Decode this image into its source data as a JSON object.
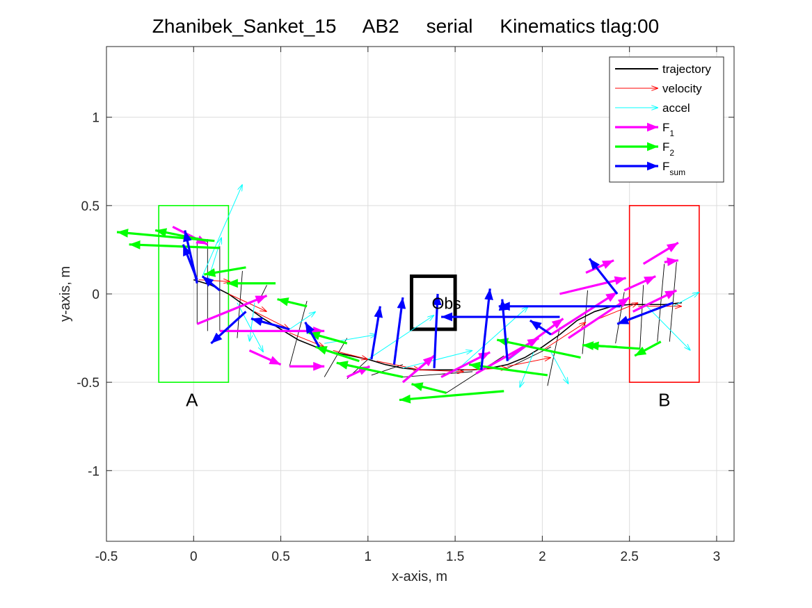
{
  "chart_data": {
    "type": "line",
    "title": "Zhanibek_Sanket_15     AB2     serial     Kinematics tlag:00",
    "xlabel": "x-axis, m",
    "ylabel": "y-axis, m",
    "xlim": [
      -0.5,
      3.1
    ],
    "ylim": [
      -1.4,
      1.4
    ],
    "grid": true,
    "xticks": [
      -0.5,
      0,
      0.5,
      1,
      1.5,
      2,
      2.5,
      3
    ],
    "xtick_labels": [
      "-0.5",
      "0",
      "0.5",
      "1",
      "1.5",
      "2",
      "2.5",
      "3"
    ],
    "yticks": [
      1,
      0.5,
      0,
      -0.5,
      -1
    ],
    "ytick_labels": [
      "1",
      "0.5",
      "0",
      "-0.5",
      "-1"
    ],
    "legend": {
      "placement": "top-right",
      "entries": [
        {
          "label": "trajectory",
          "color": "#000000",
          "style": "line"
        },
        {
          "label": "velocity",
          "color": "#ff0000",
          "style": "thin-arrow"
        },
        {
          "label": "accel",
          "color": "#00ffff",
          "style": "thin-arrow"
        },
        {
          "label": "F",
          "sub": "1",
          "color": "#ff00ff",
          "style": "thick-arrow"
        },
        {
          "label": "F",
          "sub": "2",
          "color": "#00ff00",
          "style": "thick-arrow"
        },
        {
          "label": "F",
          "sub": "sum",
          "color": "#0000ff",
          "style": "thick-arrow"
        }
      ]
    },
    "regions": [
      {
        "label": "A",
        "color": "#00ff00",
        "x": [
          -0.2,
          0.2
        ],
        "y": [
          -0.5,
          0.5
        ],
        "label_pos": [
          -0.01,
          -0.6
        ]
      },
      {
        "label": "B",
        "color": "#ff0000",
        "x": [
          2.5,
          2.9
        ],
        "y": [
          -0.5,
          0.5
        ],
        "label_pos": [
          2.7,
          -0.6
        ]
      },
      {
        "label": "Obs",
        "color": "#000000",
        "x": [
          1.25,
          1.5
        ],
        "y": [
          -0.2,
          0.1
        ],
        "label_pos": [
          1.45,
          -0.05
        ]
      }
    ],
    "trajectory": {
      "x": [
        0.0,
        0.1,
        0.2,
        0.3,
        0.4,
        0.5,
        0.6,
        0.7,
        0.8,
        0.9,
        1.0,
        1.1,
        1.2,
        1.3,
        1.4,
        1.5,
        1.6,
        1.7,
        1.8,
        1.9,
        2.0,
        2.1,
        2.2,
        2.3,
        2.4,
        2.5,
        2.6,
        2.7,
        2.8
      ],
      "y": [
        0.08,
        0.05,
        0.0,
        -0.07,
        -0.14,
        -0.2,
        -0.26,
        -0.3,
        -0.33,
        -0.35,
        -0.37,
        -0.4,
        -0.42,
        -0.43,
        -0.43,
        -0.43,
        -0.43,
        -0.42,
        -0.4,
        -0.36,
        -0.3,
        -0.23,
        -0.15,
        -0.1,
        -0.07,
        -0.06,
        -0.06,
        -0.06,
        -0.05
      ]
    },
    "pose_segments": [
      {
        "x": [
          0.02,
          0.02
        ],
        "y": [
          -0.17,
          0.32
        ]
      },
      {
        "x": [
          0.08,
          0.08
        ],
        "y": [
          -0.21,
          0.31
        ]
      },
      {
        "x": [
          0.15,
          0.15
        ],
        "y": [
          -0.21,
          0.27
        ]
      },
      {
        "x": [
          0.25,
          0.28
        ],
        "y": [
          -0.25,
          0.13
        ]
      },
      {
        "x": [
          0.38,
          0.42
        ],
        "y": [
          -0.03,
          0.05
        ]
      },
      {
        "x": [
          0.55,
          0.65
        ],
        "y": [
          -0.41,
          -0.04
        ]
      },
      {
        "x": [
          0.75,
          0.88
        ],
        "y": [
          -0.47,
          -0.25
        ]
      },
      {
        "x": [
          0.88,
          1.0
        ],
        "y": [
          -0.48,
          -0.37
        ]
      },
      {
        "x": [
          1.02,
          1.2
        ],
        "y": [
          -0.46,
          -0.4
        ]
      },
      {
        "x": [
          1.2,
          1.6
        ],
        "y": [
          -0.47,
          -0.44
        ]
      },
      {
        "x": [
          1.45,
          1.78
        ],
        "y": [
          -0.56,
          -0.35
        ]
      },
      {
        "x": [
          1.78,
          2.05
        ],
        "y": [
          -0.43,
          -0.3
        ]
      },
      {
        "x": [
          2.03,
          2.1
        ],
        "y": [
          -0.52,
          -0.19
        ]
      },
      {
        "x": [
          2.23,
          2.26
        ],
        "y": [
          -0.34,
          0.02
        ]
      },
      {
        "x": [
          2.42,
          2.47
        ],
        "y": [
          -0.28,
          0.01
        ]
      },
      {
        "x": [
          2.56,
          2.58
        ],
        "y": [
          -0.31,
          0.05
        ]
      },
      {
        "x": [
          2.66,
          2.7
        ],
        "y": [
          -0.27,
          0.17
        ]
      },
      {
        "x": [
          2.73,
          2.77
        ],
        "y": [
          -0.27,
          0.18
        ]
      }
    ],
    "series": [
      {
        "name": "velocity",
        "color": "#ff0000",
        "vectors": [
          {
            "x": 0.03,
            "y": 0.08,
            "dx": 0.18,
            "dy": -0.01
          },
          {
            "x": 0.2,
            "y": 0.0,
            "dx": 0.22,
            "dy": -0.1
          },
          {
            "x": 0.35,
            "y": -0.1,
            "dx": 0.2,
            "dy": -0.1
          },
          {
            "x": 0.55,
            "y": -0.22,
            "dx": 0.2,
            "dy": -0.08
          },
          {
            "x": 0.8,
            "y": -0.32,
            "dx": 0.2,
            "dy": -0.05
          },
          {
            "x": 1.05,
            "y": -0.38,
            "dx": 0.25,
            "dy": -0.05
          },
          {
            "x": 1.3,
            "y": -0.43,
            "dx": 0.25,
            "dy": -0.01
          },
          {
            "x": 1.55,
            "y": -0.43,
            "dx": 0.25,
            "dy": 0.01
          },
          {
            "x": 1.8,
            "y": -0.41,
            "dx": 0.25,
            "dy": 0.05
          },
          {
            "x": 2.0,
            "y": -0.32,
            "dx": 0.25,
            "dy": 0.16
          },
          {
            "x": 2.3,
            "y": -0.15,
            "dx": 0.25,
            "dy": 0.1
          },
          {
            "x": 2.55,
            "y": -0.07,
            "dx": 0.25,
            "dy": 0.0
          }
        ]
      },
      {
        "name": "accel",
        "color": "#00ffff",
        "vectors": [
          {
            "x": 0.05,
            "y": 0.1,
            "dx": 0.23,
            "dy": 0.52
          },
          {
            "x": 0.08,
            "y": 0.07,
            "dx": 0.08,
            "dy": 0.25
          },
          {
            "x": 0.25,
            "y": -0.05,
            "dx": 0.15,
            "dy": -0.28
          },
          {
            "x": 0.35,
            "y": -0.05,
            "dx": -0.03,
            "dy": -0.22
          },
          {
            "x": 0.55,
            "y": -0.2,
            "dx": 0.15,
            "dy": 0.1
          },
          {
            "x": 0.75,
            "y": -0.28,
            "dx": 0.3,
            "dy": 0.05
          },
          {
            "x": 1.0,
            "y": -0.37,
            "dx": 0.38,
            "dy": 0.25
          },
          {
            "x": 1.2,
            "y": -0.42,
            "dx": 0.4,
            "dy": 0.1
          },
          {
            "x": 1.5,
            "y": -0.44,
            "dx": 0.42,
            "dy": 0.37
          },
          {
            "x": 1.8,
            "y": -0.38,
            "dx": 0.3,
            "dy": 0.23
          },
          {
            "x": 1.95,
            "y": -0.33,
            "dx": -0.08,
            "dy": -0.2
          },
          {
            "x": 2.05,
            "y": -0.33,
            "dx": 0.1,
            "dy": -0.18
          },
          {
            "x": 2.6,
            "y": -0.07,
            "dx": 0.25,
            "dy": -0.25
          },
          {
            "x": 2.75,
            "y": -0.07,
            "dx": 0.15,
            "dy": 0.08
          }
        ]
      },
      {
        "name": "F1",
        "color": "#ff00ff",
        "vectors": [
          {
            "x": 0.02,
            "y": -0.17,
            "dx": 0.4,
            "dy": 0.16
          },
          {
            "x": 0.15,
            "y": -0.21,
            "dx": 0.6,
            "dy": 0.0
          },
          {
            "x": 0.32,
            "y": -0.32,
            "dx": 0.18,
            "dy": -0.08
          },
          {
            "x": 0.55,
            "y": -0.41,
            "dx": 0.2,
            "dy": 0.0
          },
          {
            "x": 0.88,
            "y": -0.47,
            "dx": 0.13,
            "dy": 0.06
          },
          {
            "x": 1.2,
            "y": -0.5,
            "dx": 0.18,
            "dy": 0.15
          },
          {
            "x": 1.42,
            "y": -0.47,
            "dx": 0.28,
            "dy": 0.14
          },
          {
            "x": 1.62,
            "y": -0.45,
            "dx": 0.36,
            "dy": 0.2
          },
          {
            "x": 1.8,
            "y": -0.37,
            "dx": 0.32,
            "dy": 0.23
          },
          {
            "x": 2.05,
            "y": -0.23,
            "dx": 0.38,
            "dy": 0.24
          },
          {
            "x": 2.1,
            "y": 0.0,
            "dx": 0.38,
            "dy": 0.09
          },
          {
            "x": 2.25,
            "y": 0.12,
            "dx": 0.16,
            "dy": 0.07
          },
          {
            "x": 2.47,
            "y": 0.02,
            "dx": 0.18,
            "dy": 0.08
          },
          {
            "x": 2.58,
            "y": 0.17,
            "dx": 0.2,
            "dy": 0.12
          },
          {
            "x": 2.7,
            "y": 0.18,
            "dx": 0.08,
            "dy": 0.01
          },
          {
            "x": 2.52,
            "y": -0.1,
            "dx": 0.25,
            "dy": 0.12
          },
          {
            "x": 2.15,
            "y": -0.25,
            "dx": 0.35,
            "dy": 0.23
          },
          {
            "x": -0.12,
            "y": 0.38,
            "dx": 0.2,
            "dy": -0.1
          }
        ]
      },
      {
        "name": "F2",
        "color": "#00ff00",
        "vectors": [
          {
            "x": 0.12,
            "y": 0.3,
            "dx": -0.56,
            "dy": 0.05
          },
          {
            "x": 0.15,
            "y": 0.26,
            "dx": -0.52,
            "dy": 0.02
          },
          {
            "x": 0.08,
            "y": 0.3,
            "dx": -0.3,
            "dy": 0.06
          },
          {
            "x": 0.3,
            "y": 0.15,
            "dx": -0.24,
            "dy": -0.04
          },
          {
            "x": 0.47,
            "y": 0.06,
            "dx": -0.28,
            "dy": 0.0
          },
          {
            "x": 0.65,
            "y": -0.07,
            "dx": -0.17,
            "dy": 0.04
          },
          {
            "x": 0.88,
            "y": -0.28,
            "dx": -0.22,
            "dy": 0.06
          },
          {
            "x": 0.95,
            "y": -0.38,
            "dx": -0.25,
            "dy": 0.08
          },
          {
            "x": 1.2,
            "y": -0.47,
            "dx": -0.38,
            "dy": 0.08
          },
          {
            "x": 1.45,
            "y": -0.56,
            "dx": -0.2,
            "dy": 0.05
          },
          {
            "x": 1.78,
            "y": -0.55,
            "dx": -0.6,
            "dy": -0.05
          },
          {
            "x": 2.03,
            "y": -0.46,
            "dx": -0.45,
            "dy": 0.06
          },
          {
            "x": 2.22,
            "y": -0.36,
            "dx": -0.48,
            "dy": 0.1
          },
          {
            "x": 2.43,
            "y": -0.3,
            "dx": -0.2,
            "dy": 0.01
          },
          {
            "x": 2.56,
            "y": -0.31,
            "dx": -0.3,
            "dy": 0.02
          },
          {
            "x": 2.68,
            "y": -0.27,
            "dx": -0.15,
            "dy": -0.08
          }
        ]
      },
      {
        "name": "Fsum",
        "color": "#0000ff",
        "vectors": [
          {
            "x": 0.02,
            "y": 0.06,
            "dx": -0.07,
            "dy": 0.3
          },
          {
            "x": 0.02,
            "y": 0.08,
            "dx": -0.08,
            "dy": 0.2
          },
          {
            "x": 0.15,
            "y": 0.02,
            "dx": -0.1,
            "dy": 0.08
          },
          {
            "x": 0.3,
            "y": -0.1,
            "dx": -0.2,
            "dy": -0.18
          },
          {
            "x": 0.55,
            "y": -0.2,
            "dx": -0.22,
            "dy": 0.06
          },
          {
            "x": 0.72,
            "y": -0.3,
            "dx": -0.08,
            "dy": 0.14
          },
          {
            "x": 1.02,
            "y": -0.37,
            "dx": 0.05,
            "dy": 0.3
          },
          {
            "x": 1.15,
            "y": -0.4,
            "dx": 0.05,
            "dy": 0.38
          },
          {
            "x": 1.38,
            "y": -0.42,
            "dx": 0.02,
            "dy": 0.42
          },
          {
            "x": 1.65,
            "y": -0.43,
            "dx": 0.05,
            "dy": 0.46
          },
          {
            "x": 1.8,
            "y": -0.38,
            "dx": -0.03,
            "dy": 0.35
          },
          {
            "x": 2.05,
            "y": -0.23,
            "dx": -0.12,
            "dy": 0.08
          },
          {
            "x": 2.1,
            "y": -0.13,
            "dx": -0.68,
            "dy": 0.0
          },
          {
            "x": 2.45,
            "y": -0.07,
            "dx": -0.7,
            "dy": 0.0
          },
          {
            "x": 2.43,
            "y": 0.0,
            "dx": -0.16,
            "dy": 0.2
          },
          {
            "x": 2.75,
            "y": -0.05,
            "dx": -0.32,
            "dy": -0.12
          }
        ]
      }
    ],
    "annotations": [
      "A",
      "B",
      "Obs"
    ]
  }
}
